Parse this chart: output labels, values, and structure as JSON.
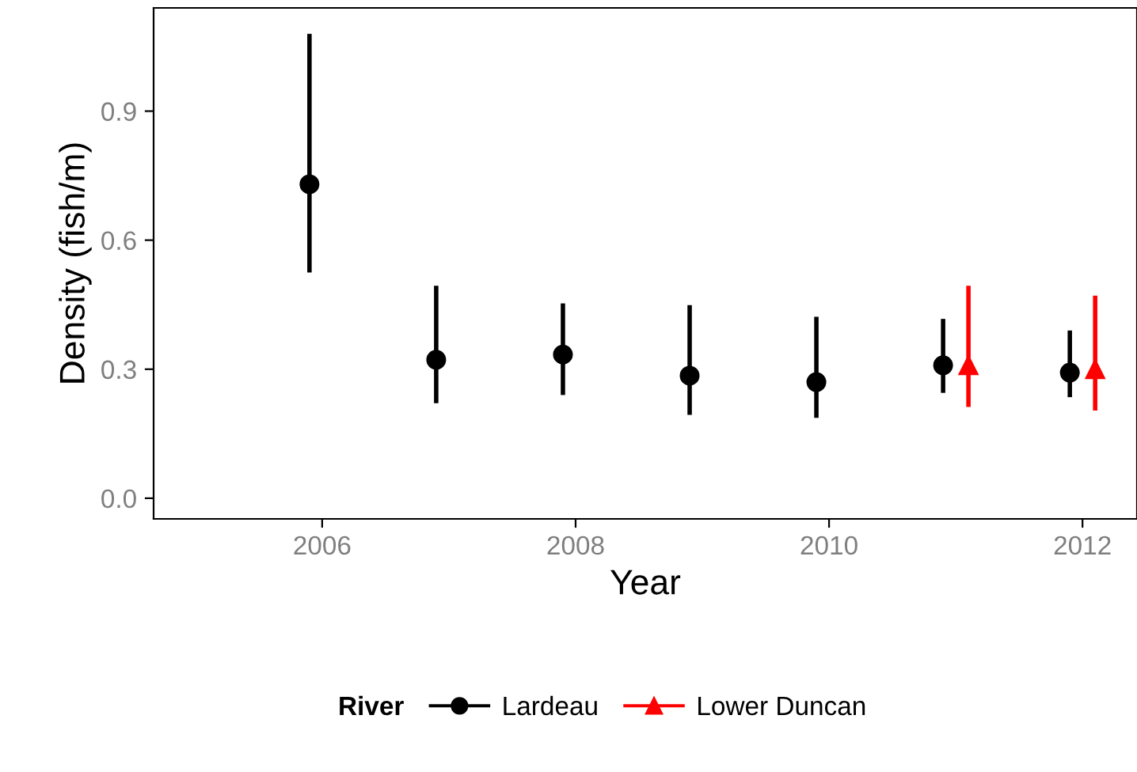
{
  "chart_data": {
    "type": "scatter",
    "xlabel": "Year",
    "ylabel": "Density (fish/m)",
    "legend_title": "River",
    "legend": "bottom",
    "grid": false,
    "xlim": [
      2004.67,
      2012.43
    ],
    "xticks": [
      2006,
      2008,
      2010,
      2012
    ],
    "ylim": [
      -0.048,
      1.14
    ],
    "yticks": [
      {
        "value": 0,
        "label": "0.0"
      },
      0.3,
      0.6,
      0.9
    ],
    "series": [
      {
        "name": "Lardeau",
        "color": "#000000",
        "marker": "circle",
        "x": [
          2005.9,
          2006.9,
          2007.9,
          2008.9,
          2009.9,
          2010.9,
          2011.9
        ],
        "values": [
          0.73,
          0.322,
          0.334,
          0.285,
          0.27,
          0.309,
          0.292
        ],
        "errors": [
          [
            0.525,
            1.08
          ],
          [
            0.221,
            0.494
          ],
          [
            0.24,
            0.453
          ],
          [
            0.194,
            0.449
          ],
          [
            0.187,
            0.422
          ],
          [
            0.245,
            0.417
          ],
          [
            0.235,
            0.39
          ]
        ]
      },
      {
        "name": "Lower Duncan",
        "color": "#ff0000",
        "marker": "triangle",
        "x": [
          2011.1,
          2012.1
        ],
        "values": [
          0.309,
          0.3
        ],
        "errors": [
          [
            0.212,
            0.494
          ],
          [
            0.204,
            0.471
          ]
        ]
      }
    ]
  }
}
